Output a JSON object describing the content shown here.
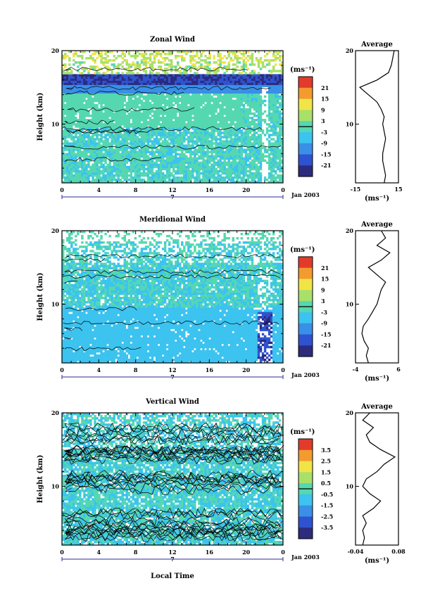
{
  "date_label": "Jan 2003",
  "x_axis_label": "Local Time",
  "chart_data": [
    {
      "type": "heatmap",
      "title": "Zonal Wind",
      "ylabel": "Height (km)",
      "x_ticks": [
        "0",
        "4",
        "8",
        "12",
        "16",
        "20",
        "0"
      ],
      "y_ticks": [
        "20",
        "10"
      ],
      "xlim": [
        0,
        24
      ],
      "ylim": [
        2,
        20
      ],
      "day_marker": "7",
      "colorbar": {
        "unit": "(ms⁻¹)",
        "ticks": [
          "21",
          "15",
          "9",
          "3",
          "-3",
          "-9",
          "-15",
          "-21"
        ],
        "range": [
          -24,
          24
        ]
      },
      "average_profile": {
        "title": "Average",
        "xlim": [
          -15,
          15
        ],
        "x_ticks": [
          "-15",
          "15"
        ],
        "y_ticks": [
          "20",
          "10"
        ],
        "unit": "(ms⁻¹)",
        "height_km": [
          2,
          3,
          4,
          5,
          6,
          7,
          8,
          9,
          10,
          11,
          12,
          13,
          14,
          15,
          16,
          17,
          18,
          19,
          20
        ],
        "values": [
          5,
          6,
          5,
          4,
          4,
          5,
          6,
          5,
          4,
          5,
          3,
          0,
          -6,
          -12,
          0,
          8,
          10,
          11,
          12
        ]
      }
    },
    {
      "type": "heatmap",
      "title": "Meridional Wind",
      "ylabel": "Height (km)",
      "x_ticks": [
        "0",
        "4",
        "8",
        "12",
        "16",
        "20",
        "0"
      ],
      "y_ticks": [
        "20",
        "10"
      ],
      "xlim": [
        0,
        24
      ],
      "ylim": [
        2,
        20
      ],
      "day_marker": "7",
      "colorbar": {
        "unit": "(ms⁻¹)",
        "ticks": [
          "21",
          "15",
          "9",
          "3",
          "-3",
          "-9",
          "-15",
          "-21"
        ],
        "range": [
          -24,
          24
        ]
      },
      "average_profile": {
        "title": "Average",
        "xlim": [
          -4,
          6
        ],
        "x_ticks": [
          "-4",
          "6"
        ],
        "y_ticks": [
          "20",
          "10"
        ],
        "unit": "(ms⁻¹)",
        "height_km": [
          2,
          3,
          4,
          5,
          6,
          7,
          8,
          9,
          10,
          11,
          12,
          13,
          14,
          15,
          16,
          17,
          18,
          19,
          20
        ],
        "values": [
          -1,
          -1.5,
          -1,
          -2,
          -2.5,
          -2.2,
          -1,
          0,
          1,
          1.5,
          2,
          3,
          1,
          -1,
          2,
          4,
          1,
          3,
          2
        ]
      }
    },
    {
      "type": "heatmap",
      "title": "Vertical Wind",
      "ylabel": "Height (km)",
      "x_ticks": [
        "0",
        "4",
        "8",
        "12",
        "16",
        "20",
        "0"
      ],
      "y_ticks": [
        "20",
        "10"
      ],
      "xlim": [
        0,
        24
      ],
      "ylim": [
        2,
        20
      ],
      "day_marker": "7",
      "colorbar": {
        "unit": "(ms⁻¹)",
        "ticks": [
          "3.5",
          "2.5",
          "1.5",
          "0.5",
          "-0.5",
          "-1.5",
          "-2.5",
          "-3.5"
        ],
        "range": [
          -4,
          4
        ]
      },
      "average_profile": {
        "title": "Average",
        "xlim": [
          -0.04,
          0.08
        ],
        "x_ticks": [
          "-0.04",
          "0.08"
        ],
        "y_ticks": [
          "20",
          "10"
        ],
        "unit": "(ms⁻¹)",
        "height_km": [
          2,
          3,
          4,
          5,
          6,
          7,
          8,
          9,
          10,
          11,
          12,
          13,
          14,
          15,
          16,
          17,
          18,
          19,
          20
        ],
        "values": [
          -0.02,
          -0.015,
          -0.02,
          -0.01,
          -0.02,
          0.01,
          0.03,
          0.0,
          -0.02,
          -0.01,
          0.02,
          0.04,
          0.07,
          0.03,
          0.0,
          -0.01,
          0.01,
          -0.02,
          0.0
        ]
      }
    }
  ]
}
